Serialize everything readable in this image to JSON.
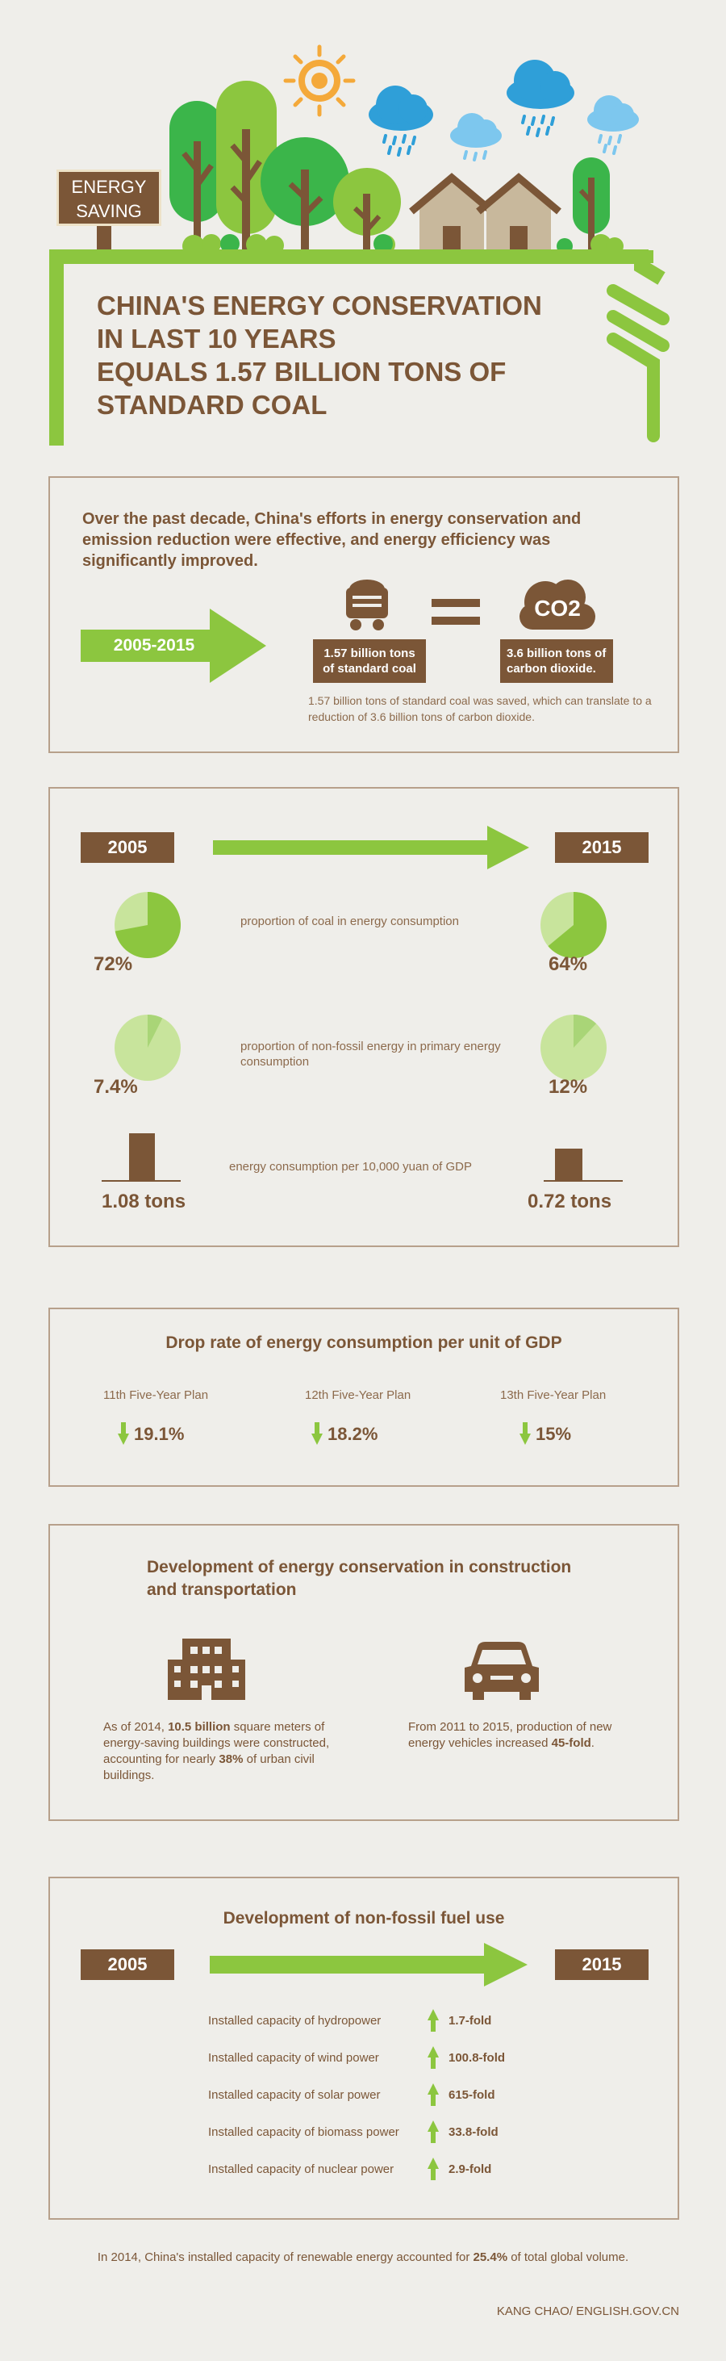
{
  "sign": {
    "line1": "ENERGY",
    "line2": "SAVING"
  },
  "title": {
    "line1": "CHINA'S ENERGY CONSERVATION",
    "line2": "IN LAST 10 YEARS",
    "line3": "EQUALS 1.57 BILLION TONS OF",
    "line4": "STANDARD COAL"
  },
  "intro": {
    "text": "Over the past decade, China's efforts in energy conservation and emission reduction were effective, and energy efficiency was significantly improved.",
    "period": "2005-2015",
    "coal_label": "1.57 billion tons of standard coal",
    "co2_icon": "CO2",
    "co2_label": "3.6 billion tons of carbon dioxide.",
    "note": "1.57 billion tons of standard coal was saved, which can translate to a reduction of 3.6 billion tons of carbon dioxide."
  },
  "compare": {
    "year_start": "2005",
    "year_end": "2015",
    "rows": [
      {
        "label": "proportion of coal in energy consumption",
        "start": "72%",
        "end": "64%"
      },
      {
        "label": "proportion of non-fossil energy in primary energy consumption",
        "start": "7.4%",
        "end": "12%"
      },
      {
        "label": "energy consumption per 10,000 yuan of GDP",
        "start": "1.08 tons",
        "end": "0.72 tons"
      }
    ]
  },
  "chart_data": {
    "type": "pie",
    "charts": [
      {
        "values": [
          72,
          28
        ],
        "unit": "%"
      },
      {
        "values": [
          64,
          36
        ],
        "unit": "%"
      },
      {
        "values": [
          7.4,
          92.6
        ],
        "unit": "%"
      },
      {
        "values": [
          12,
          88
        ],
        "unit": "%"
      }
    ],
    "bars": [
      {
        "values": [
          1.08,
          0.72
        ],
        "unit": "tons"
      }
    ]
  },
  "drop": {
    "title": "Drop rate of energy consumption per unit of GDP",
    "plans": [
      {
        "name": "11th Five-Year Plan",
        "value": "19.1%"
      },
      {
        "name": "12th Five-Year Plan",
        "value": "18.2%"
      },
      {
        "name": "13th Five-Year Plan",
        "value": "15%"
      }
    ]
  },
  "construction": {
    "title_line1": "Development of energy conservation in construction",
    "title_line2": "and transportation",
    "left_a": "As of 2014, ",
    "left_b": "10.5 billion",
    "left_c": " square meters of energy-saving buildings were constructed, accounting for nearly ",
    "left_d": "38%",
    "left_e": " of urban civil buildings.",
    "right_a": "From 2011 to 2015, production of new energy vehicles increased ",
    "right_b": "45-fold",
    "right_c": "."
  },
  "nonfossil": {
    "title": "Development of non-fossil fuel use",
    "year_start": "2005",
    "year_end": "2015",
    "items": [
      {
        "label": "Installed capacity of hydropower",
        "value": "1.7-fold"
      },
      {
        "label": "Installed capacity of wind power",
        "value": "100.8-fold"
      },
      {
        "label": "Installed capacity of solar power",
        "value": "615-fold"
      },
      {
        "label": "Installed capacity of biomass power",
        "value": "33.8-fold"
      },
      {
        "label": "Installed capacity of nuclear power",
        "value": "2.9-fold"
      }
    ]
  },
  "footer": {
    "note_a": "In 2014, China's installed capacity of renewable energy accounted for ",
    "note_b": "25.4%",
    "note_c": " of total global volume.",
    "credit": "KANG CHAO/ ENGLISH.GOV.CN"
  },
  "colors": {
    "brown": "#7b5637",
    "green": "#8cc63f",
    "light_green": "#c8e49c",
    "bg": "#efeeea"
  }
}
